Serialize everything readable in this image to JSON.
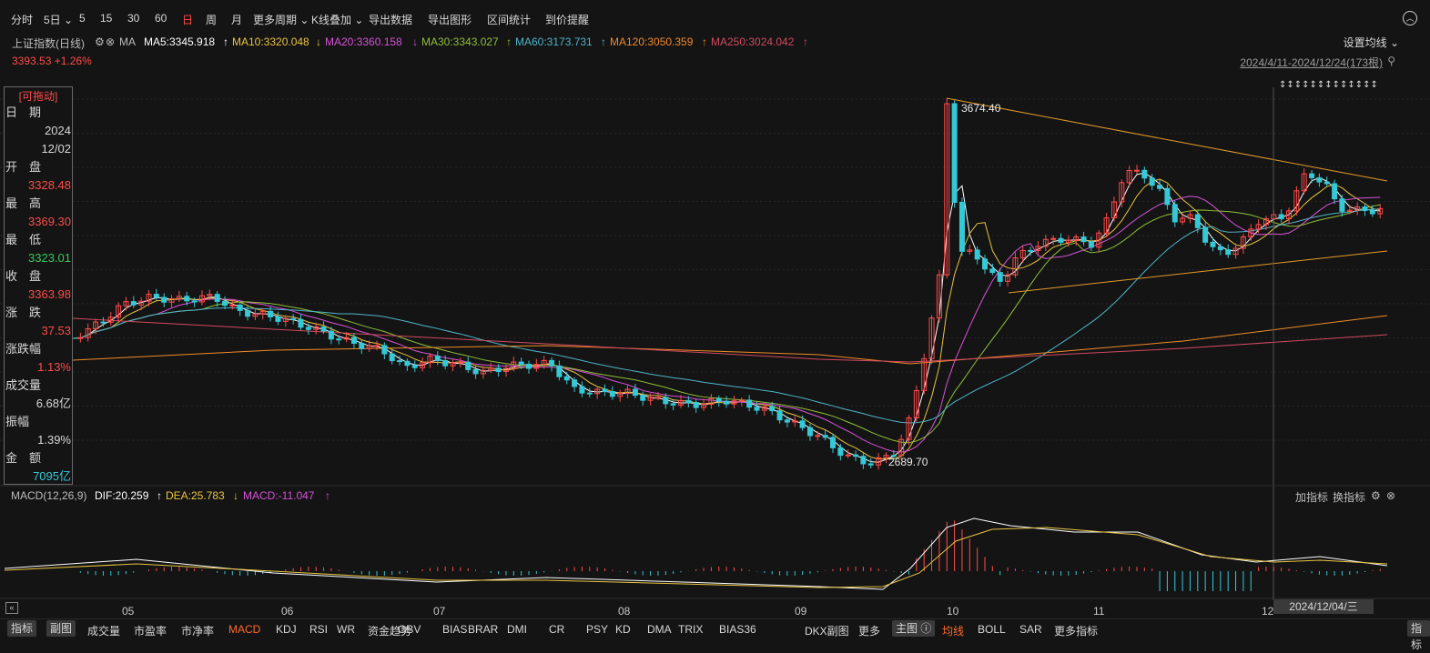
{
  "toolbar": {
    "items": [
      "分时",
      "5日",
      "5",
      "15",
      "30",
      "60",
      "日",
      "周",
      "月",
      "更多周期",
      "K线叠加",
      "导出数据",
      "导出图形",
      "区间统计",
      "到价提醒"
    ],
    "active": "日"
  },
  "ma_bar": {
    "title": "上证指数(日线)",
    "ma_label": "MA",
    "ma5": "MA5:3345.918",
    "ma10": "MA10:3320.048",
    "ma20": "MA20:3360.158",
    "ma30": "MA30:3343.027",
    "ma60": "MA60:3173.731",
    "ma120": "MA120:3050.359",
    "ma250": "MA250:3024.042",
    "set_ma": "设置均线"
  },
  "price_line": "3393.53 +1.26%",
  "range": "2024/4/11-2024/12/24(173根)",
  "info_panel": {
    "drag": "[可拖动]",
    "rows": [
      {
        "label": "日　期",
        "value": ""
      },
      {
        "label": "",
        "value": "2024"
      },
      {
        "label": "",
        "value": "12/02"
      },
      {
        "label": "开　盘",
        "value": ""
      },
      {
        "label": "",
        "value": "3328.48"
      },
      {
        "label": "最　高",
        "value": ""
      },
      {
        "label": "",
        "value": "3369.30"
      },
      {
        "label": "最　低",
        "value": ""
      },
      {
        "label": "",
        "value": "3323.01"
      },
      {
        "label": "收　盘",
        "value": ""
      },
      {
        "label": "",
        "value": "3363.98"
      },
      {
        "label": "涨　跌",
        "value": ""
      },
      {
        "label": "",
        "value": "37.53"
      },
      {
        "label": "涨跌幅",
        "value": ""
      },
      {
        "label": "",
        "value": "1.13%"
      },
      {
        "label": "成交量",
        "value": ""
      },
      {
        "label": "",
        "value": "6.68亿"
      },
      {
        "label": "振幅",
        "value": ""
      },
      {
        "label": "",
        "value": "1.39%"
      },
      {
        "label": "金　额",
        "value": ""
      },
      {
        "label": "",
        "value": "7095亿"
      }
    ]
  },
  "annotations": {
    "high": "3674.40",
    "low": "2689.70"
  },
  "macd_bar": {
    "title": "MACD(12,26,9)",
    "dif": "DIF:20.259",
    "dea": "DEA:25.783",
    "macd": "MACD:-11.047",
    "add": "加指标",
    "swap": "换指标"
  },
  "x_axis": [
    "05",
    "06",
    "07",
    "08",
    "09",
    "10",
    "11",
    "12"
  ],
  "date_tag": "2024/12/04/三",
  "bottombar": {
    "left_btns": [
      "指标",
      "副图"
    ],
    "items": [
      "成交量",
      "市盈率",
      "市净率",
      "MACD",
      "KDJ",
      "RSI",
      "WR",
      "资金趋势",
      "OBV",
      "BIAS",
      "BRAR",
      "DMI",
      "CR",
      "PSY",
      "KD",
      "DMA",
      "TRIX",
      "BIAS36",
      "DKX副图",
      "更多"
    ],
    "main_btn": "主图",
    "main_items": [
      "均线",
      "BOLL",
      "SAR",
      "更多指标"
    ],
    "right_btn": "指标"
  },
  "colors": {
    "up": "#ff4b4b",
    "down": "#35c8d6",
    "ma5": "#ffffff",
    "ma10": "#e9c341",
    "ma20": "#d852d8",
    "ma30": "#8fbf3a",
    "ma60": "#4fb4c9",
    "ma120": "#f08a2a",
    "ma250": "#d04a60"
  }
}
